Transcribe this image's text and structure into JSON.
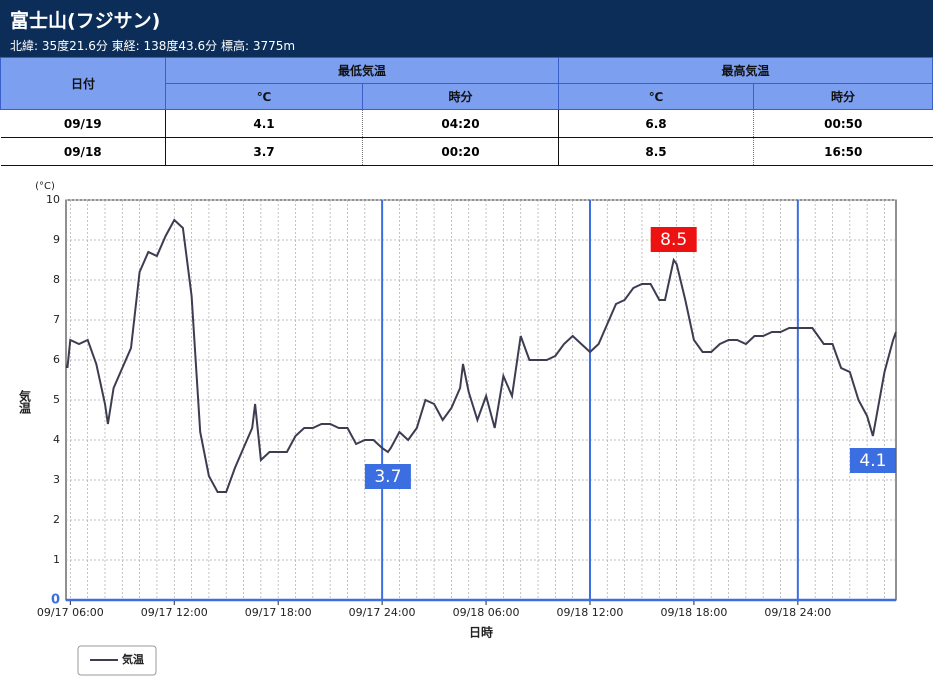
{
  "header": {
    "title": "富士山(フジサン)",
    "subtitle": "北緯: 35度21.6分 東経: 138度43.6分 標高: 3775m"
  },
  "table": {
    "header": [
      "日付",
      "最低気温",
      "最高気温"
    ],
    "subheader": [
      "℃",
      "時分",
      "℃",
      "時分"
    ],
    "rows": [
      [
        "09/19",
        4.1,
        "04:20",
        6.8,
        "00:50"
      ],
      [
        "09/18",
        3.7,
        "00:20",
        8.5,
        "16:50"
      ]
    ]
  },
  "chart_data": {
    "type": "line",
    "y_unit": "(°C)",
    "ylabel": "気温",
    "xlabel": "日時",
    "xlim": [
      "09/17 05:45",
      "09/19 05:40"
    ],
    "xticks": [
      "09/17 06:00",
      "09/17 12:00",
      "09/17 18:00",
      "09/17 24:00",
      "09/18 06:00",
      "09/18 12:00",
      "09/18 18:00",
      "09/18 24:00"
    ],
    "ylim": [
      0,
      10
    ],
    "yticks": [
      0,
      1,
      2,
      3,
      4,
      5,
      6,
      7,
      8,
      9,
      10
    ],
    "grid": true,
    "vlines": [
      "09/17 24:00",
      "09/18 12:00",
      "09/18 24:00"
    ],
    "vline_color": "#3b6ee0",
    "x": [
      "09/17 05:50",
      "09/17 06:00",
      "09/17 06:30",
      "09/17 07:00",
      "09/17 07:30",
      "09/17 08:00",
      "09/17 08:10",
      "09/17 08:30",
      "09/17 09:00",
      "09/17 09:30",
      "09/17 10:00",
      "09/17 10:30",
      "09/17 11:00",
      "09/17 11:30",
      "09/17 12:00",
      "09/17 12:30",
      "09/17 13:00",
      "09/17 13:30",
      "09/17 14:00",
      "09/17 14:30",
      "09/17 15:00",
      "09/17 15:30",
      "09/17 16:00",
      "09/17 16:30",
      "09/17 16:40",
      "09/17 17:00",
      "09/17 17:30",
      "09/17 18:00",
      "09/17 18:30",
      "09/17 19:00",
      "09/17 19:30",
      "09/17 20:00",
      "09/17 20:30",
      "09/17 21:00",
      "09/17 21:30",
      "09/17 22:00",
      "09/17 22:30",
      "09/17 23:00",
      "09/17 23:30",
      "09/18 00:00",
      "09/18 00:20",
      "09/18 00:30",
      "09/18 01:00",
      "09/18 01:30",
      "09/18 02:00",
      "09/18 02:30",
      "09/18 03:00",
      "09/18 03:30",
      "09/18 04:00",
      "09/18 04:30",
      "09/18 04:40",
      "09/18 05:00",
      "09/18 05:30",
      "09/18 06:00",
      "09/18 06:30",
      "09/18 07:00",
      "09/18 07:30",
      "09/18 08:00",
      "09/18 08:30",
      "09/18 09:00",
      "09/18 09:30",
      "09/18 10:00",
      "09/18 10:30",
      "09/18 11:00",
      "09/18 11:30",
      "09/18 12:00",
      "09/18 12:30",
      "09/18 13:00",
      "09/18 13:30",
      "09/18 14:00",
      "09/18 14:30",
      "09/18 15:00",
      "09/18 15:30",
      "09/18 16:00",
      "09/18 16:20",
      "09/18 16:50",
      "09/18 17:00",
      "09/18 17:30",
      "09/18 18:00",
      "09/18 18:30",
      "09/18 19:00",
      "09/18 19:30",
      "09/18 20:00",
      "09/18 20:30",
      "09/18 21:00",
      "09/18 21:30",
      "09/18 22:00",
      "09/18 22:30",
      "09/18 23:00",
      "09/18 23:30",
      "09/19 00:00",
      "09/19 00:50",
      "09/19 01:00",
      "09/19 01:30",
      "09/19 02:00",
      "09/19 02:30",
      "09/19 03:00",
      "09/19 03:30",
      "09/19 04:00",
      "09/19 04:20",
      "09/19 04:30",
      "09/19 05:00",
      "09/19 05:30",
      "09/19 05:40"
    ],
    "series": [
      {
        "name": "気温",
        "color": "#3d3d52",
        "values": [
          5.8,
          6.5,
          6.4,
          6.5,
          5.9,
          4.9,
          4.4,
          5.3,
          5.8,
          6.3,
          8.2,
          8.7,
          8.6,
          9.1,
          9.5,
          9.3,
          7.6,
          4.2,
          3.1,
          2.7,
          2.7,
          3.3,
          3.8,
          4.3,
          4.9,
          3.5,
          3.7,
          3.7,
          3.7,
          4.1,
          4.3,
          4.3,
          4.4,
          4.4,
          4.3,
          4.3,
          3.9,
          4.0,
          4.0,
          3.8,
          3.7,
          3.8,
          4.2,
          4.0,
          4.3,
          5.0,
          4.9,
          4.5,
          4.8,
          5.3,
          5.9,
          5.2,
          4.5,
          5.1,
          4.3,
          5.6,
          5.1,
          6.6,
          6.0,
          6.0,
          6.0,
          6.1,
          6.4,
          6.6,
          6.4,
          6.2,
          6.4,
          6.9,
          7.4,
          7.5,
          7.8,
          7.9,
          7.9,
          7.5,
          7.5,
          8.5,
          8.4,
          7.5,
          6.5,
          6.2,
          6.2,
          6.4,
          6.5,
          6.5,
          6.4,
          6.6,
          6.6,
          6.7,
          6.7,
          6.8,
          6.8,
          6.8,
          6.7,
          6.4,
          6.4,
          5.8,
          5.7,
          5.0,
          4.6,
          4.1,
          4.5,
          5.7,
          6.5,
          6.7
        ]
      }
    ],
    "annotations": [
      {
        "x": "09/18 00:20",
        "y": 3.7,
        "color": "#3b6ee0",
        "side": "below"
      },
      {
        "x": "09/18 16:50",
        "y": 8.5,
        "color": "#ee1111",
        "side": "above"
      },
      {
        "x": "09/19 04:20",
        "y": 4.1,
        "color": "#3b6ee0",
        "side": "below"
      }
    ]
  }
}
